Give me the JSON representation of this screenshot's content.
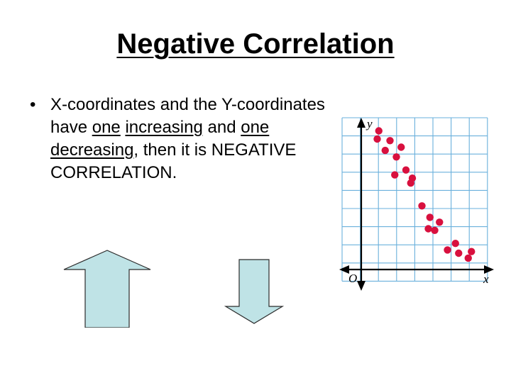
{
  "slide": {
    "title": "Negative Correlation",
    "bullet_marker": "•",
    "bullet": {
      "part1": "X-coordinates and the Y-coordinates have ",
      "one_a": "one",
      "part2": " ",
      "increasing": "increasing",
      "part3": " and ",
      "one_b": "one",
      "part4": " ",
      "decreasing": "decreasing",
      "part5": ", then it is NEGATIVE CORRELATION."
    }
  },
  "colors": {
    "grid_line": "#6ab0dc",
    "dot": "#d8103e",
    "arrow_fill": "#bfe3e6",
    "arrow_stroke": "#2b2b2b"
  },
  "icons": {
    "up_arrow": "up-arrow-icon",
    "down_arrow": "down-arrow-icon"
  },
  "chart_data": {
    "type": "scatter",
    "title": "",
    "xlabel": "x",
    "ylabel": "y",
    "origin_label": "O",
    "grid": true,
    "xlim": [
      0,
      8
    ],
    "ylim": [
      0,
      9
    ],
    "points": [
      {
        "x": 1.1,
        "y": 8.5
      },
      {
        "x": 1.0,
        "y": 8.0
      },
      {
        "x": 1.8,
        "y": 7.9
      },
      {
        "x": 1.5,
        "y": 7.3
      },
      {
        "x": 2.5,
        "y": 7.5
      },
      {
        "x": 2.2,
        "y": 6.9
      },
      {
        "x": 2.8,
        "y": 6.1
      },
      {
        "x": 2.1,
        "y": 5.8
      },
      {
        "x": 3.2,
        "y": 5.6
      },
      {
        "x": 3.1,
        "y": 5.3
      },
      {
        "x": 3.8,
        "y": 3.9
      },
      {
        "x": 4.3,
        "y": 3.2
      },
      {
        "x": 4.9,
        "y": 2.9
      },
      {
        "x": 4.2,
        "y": 2.5
      },
      {
        "x": 4.6,
        "y": 2.4
      },
      {
        "x": 5.4,
        "y": 1.2
      },
      {
        "x": 6.1,
        "y": 1.0
      },
      {
        "x": 6.9,
        "y": 1.1
      },
      {
        "x": 6.7,
        "y": 0.7
      },
      {
        "x": 5.9,
        "y": 1.6
      }
    ]
  }
}
